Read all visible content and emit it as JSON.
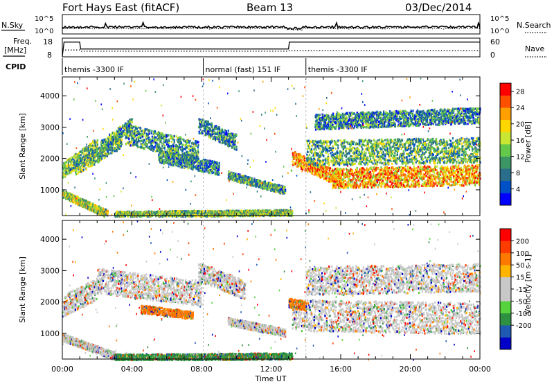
{
  "header": {
    "station": "Fort Hays East (fitACF)",
    "beam": "Beam 13",
    "date": "03/Dec/2014"
  },
  "summary_panels": {
    "nsky_label": "N.Sky",
    "nsearch_label": "N.Search",
    "noise_ticks": [
      "10^5",
      "10^0"
    ],
    "freq_label_1": "Freq.",
    "freq_label_2": "[MHz]",
    "freq_ticks": [
      "18",
      "8"
    ],
    "nave_label": "Nave",
    "nave_ticks": [
      "60",
      "0"
    ],
    "cpid_label": "CPID"
  },
  "cpid_segments": [
    {
      "label": "themis -3300 IF",
      "start_h": 0.0,
      "end_h": 8.1
    },
    {
      "label": "normal (fast) 151 IF",
      "start_h": 8.1,
      "end_h": 14.0
    },
    {
      "label": "themis -3300 IF",
      "start_h": 14.0,
      "end_h": 24.0
    }
  ],
  "freq_trace": {
    "unit": "MHz",
    "range": [
      8,
      18
    ],
    "points": [
      [
        0,
        8.3
      ],
      [
        0.1,
        15.9
      ],
      [
        1.0,
        15.9
      ],
      [
        1.05,
        12.2
      ],
      [
        13.0,
        12.2
      ],
      [
        13.05,
        15.9
      ],
      [
        24,
        15.9
      ]
    ]
  },
  "nave_trace": {
    "range": [
      0,
      60
    ],
    "points": [
      [
        0,
        22
      ],
      [
        1.0,
        22
      ],
      [
        1.05,
        18
      ],
      [
        13.0,
        18
      ],
      [
        13.05,
        20
      ],
      [
        24,
        20
      ]
    ]
  },
  "chart_data": [
    {
      "type": "heatmap",
      "title": "Power",
      "ylabel": "Slant Range [km]",
      "xlabel": "Time UT",
      "x_ticks": [
        "00:00",
        "04:00",
        "08:00",
        "12:00",
        "16:00",
        "20:00",
        "00:00"
      ],
      "x_range_hours": [
        0,
        24
      ],
      "y_ticks": [
        1000,
        2000,
        3000,
        4000
      ],
      "ylim": [
        180,
        4600
      ],
      "colorbar": {
        "label": "Power [dB]",
        "ticks": [
          "4",
          "8",
          "12",
          "16",
          "20",
          "24",
          "28"
        ],
        "range": [
          0,
          30
        ],
        "colors": [
          "#0000ff",
          "#0050c8",
          "#2a6e8c",
          "#3c9664",
          "#64c84b",
          "#c8e632",
          "#ffd700",
          "#ffa000",
          "#ff5000",
          "#ff0000"
        ]
      },
      "echo_regions": [
        {
          "t_start": 0.0,
          "t_end": 2.0,
          "r_center_start": 1650,
          "r_center_end": 2450,
          "width_km": 500,
          "level": 0.45
        },
        {
          "t_start": 0.7,
          "t_end": 3.4,
          "r_center_start": 1700,
          "r_center_end": 2600,
          "width_km": 450,
          "level": 0.4
        },
        {
          "t_start": 2.2,
          "t_end": 4.0,
          "r_center_start": 2400,
          "r_center_end": 3150,
          "width_km": 400,
          "level": 0.35
        },
        {
          "t_start": 3.6,
          "t_end": 7.8,
          "r_center_start": 2800,
          "r_center_end": 2250,
          "width_km": 650,
          "level": 0.35
        },
        {
          "t_start": 5.5,
          "t_end": 9.0,
          "r_center_start": 2100,
          "r_center_end": 1700,
          "width_km": 400,
          "level": 0.3
        },
        {
          "t_start": 7.8,
          "t_end": 10.0,
          "r_center_start": 3100,
          "r_center_end": 2550,
          "width_km": 500,
          "level": 0.3
        },
        {
          "t_start": 9.5,
          "t_end": 12.8,
          "r_center_start": 1500,
          "r_center_end": 1000,
          "width_km": 250,
          "level": 0.35
        },
        {
          "t_start": 0.0,
          "t_end": 2.6,
          "r_center_start": 900,
          "r_center_end": 250,
          "width_km": 250,
          "level": 0.5
        },
        {
          "t_start": 3.0,
          "t_end": 13.2,
          "r_center_start": 250,
          "r_center_end": 300,
          "width_km": 180,
          "level": 0.45
        },
        {
          "t_start": 13.2,
          "t_end": 16.0,
          "r_center_start": 2050,
          "r_center_end": 1350,
          "width_km": 450,
          "level": 0.75
        },
        {
          "t_start": 15.5,
          "t_end": 24.0,
          "r_center_start": 1400,
          "r_center_end": 1500,
          "width_km": 650,
          "level": 0.72
        },
        {
          "t_start": 14.0,
          "t_end": 24.0,
          "r_center_start": 2200,
          "r_center_end": 2300,
          "width_km": 800,
          "level": 0.4
        },
        {
          "t_start": 14.5,
          "t_end": 24.0,
          "r_center_start": 3200,
          "r_center_end": 3400,
          "width_km": 500,
          "level": 0.3
        }
      ]
    },
    {
      "type": "heatmap",
      "title": "Velocity",
      "ylabel": "Slant Range [km]",
      "xlabel": "Time UT",
      "x_ticks": [
        "00:00",
        "04:00",
        "08:00",
        "12:00",
        "16:00",
        "20:00",
        "00:00"
      ],
      "x_range_hours": [
        0,
        24
      ],
      "y_ticks": [
        1000,
        2000,
        3000,
        4000
      ],
      "ylim": [
        180,
        4600
      ],
      "colorbar": {
        "label": "Velocity [m s-1]",
        "ticks": [
          "200",
          "100",
          "50",
          "15",
          "-15",
          "-50",
          "-100",
          "-200"
        ],
        "colors": [
          "#0000c8",
          "#1e5ab4",
          "#2d9141",
          "#55d23c",
          "#c8c8c8",
          "#c8c8c8",
          "#ffb400",
          "#ff7800",
          "#ff3c00",
          "#ff0000"
        ]
      },
      "echo_regions": [
        {
          "t_start": 0.0,
          "t_end": 2.0,
          "r_center_start": 1900,
          "r_center_end": 2450,
          "width_km": 700,
          "level": 0.5
        },
        {
          "t_start": 2.0,
          "t_end": 8.0,
          "r_center_start": 2700,
          "r_center_end": 2300,
          "width_km": 800,
          "level": 0.5
        },
        {
          "t_start": 7.8,
          "t_end": 10.5,
          "r_center_start": 3000,
          "r_center_end": 2400,
          "width_km": 600,
          "level": 0.5
        },
        {
          "t_start": 4.5,
          "t_end": 7.5,
          "r_center_start": 1800,
          "r_center_end": 1600,
          "width_km": 250,
          "level": 0.75
        },
        {
          "t_start": 9.5,
          "t_end": 12.8,
          "r_center_start": 1400,
          "r_center_end": 1050,
          "width_km": 250,
          "level": 0.5
        },
        {
          "t_start": 0.0,
          "t_end": 3.0,
          "r_center_start": 900,
          "r_center_end": 300,
          "width_km": 250,
          "level": 0.5
        },
        {
          "t_start": 3.0,
          "t_end": 13.2,
          "r_center_start": 260,
          "r_center_end": 300,
          "width_km": 200,
          "level": 0.28
        },
        {
          "t_start": 13.2,
          "t_end": 24.0,
          "r_center_start": 1600,
          "r_center_end": 1500,
          "width_km": 1000,
          "level": 0.5
        },
        {
          "t_start": 14.0,
          "t_end": 24.0,
          "r_center_start": 2700,
          "r_center_end": 2800,
          "width_km": 900,
          "level": 0.5
        },
        {
          "t_start": 13.0,
          "t_end": 14.0,
          "r_center_start": 2000,
          "r_center_end": 1900,
          "width_km": 300,
          "level": 0.75
        }
      ]
    }
  ]
}
